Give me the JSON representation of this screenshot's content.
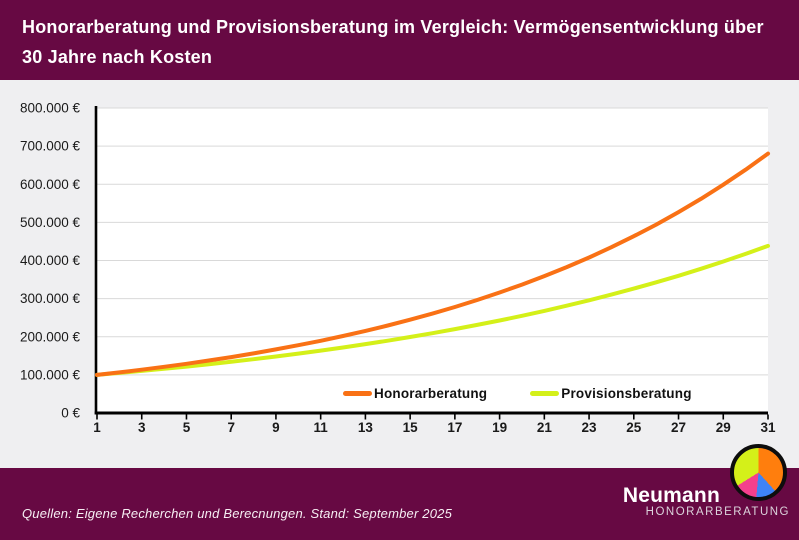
{
  "header": {
    "title": "Honorarberatung und Provisionsberatung im Vergleich: Vermögensentwicklung über 30 Jahre nach Kosten"
  },
  "footer": {
    "source_note": "Quellen: Eigene Recherchen und Berecnungen. Stand: September 2025",
    "brand": {
      "name": "Neumann",
      "subtitle": "HONORARBERATUNG"
    }
  },
  "colors": {
    "header_bg": "#670943",
    "footer_bg": "#670943",
    "canvas_bg": "#EFEFF1",
    "plot_bg": "#FFFFFF",
    "grid": "#D9D9D9",
    "axis": "#000000",
    "tick_label": "#1a1a1a",
    "logo_pie": {
      "orange": "#FF7E0D",
      "blue": "#3E83F7",
      "pink": "#F4408D",
      "green": "#D4F019"
    }
  },
  "chart_data": {
    "type": "line",
    "title": "",
    "xlabel": "",
    "ylabel": "",
    "xlim": [
      1,
      31
    ],
    "ylim": [
      0,
      800000
    ],
    "grid": true,
    "legend_position": "inside-bottom",
    "x": [
      1,
      2,
      3,
      4,
      5,
      6,
      7,
      8,
      9,
      10,
      11,
      12,
      13,
      14,
      15,
      16,
      17,
      18,
      19,
      20,
      21,
      22,
      23,
      24,
      25,
      26,
      27,
      28,
      29,
      30,
      31
    ],
    "x_tick_labels": [
      "1",
      "3",
      "5",
      "7",
      "9",
      "11",
      "13",
      "15",
      "17",
      "19",
      "21",
      "23",
      "25",
      "27",
      "29",
      "31"
    ],
    "y_ticks": [
      {
        "value": 0,
        "label": "0 €"
      },
      {
        "value": 100000,
        "label": "100.000 €"
      },
      {
        "value": 200000,
        "label": "200.000 €"
      },
      {
        "value": 300000,
        "label": "300.000 €"
      },
      {
        "value": 400000,
        "label": "400.000 €"
      },
      {
        "value": 500000,
        "label": "500.000 €"
      },
      {
        "value": 600000,
        "label": "600.000 €"
      },
      {
        "value": 700000,
        "label": "700.000 €"
      },
      {
        "value": 800000,
        "label": "800.000 €"
      }
    ],
    "series": [
      {
        "name": "Honorarberatung",
        "color": "#F97115",
        "values": [
          100000,
          106600,
          113636,
          121136,
          129131,
          137653,
          146738,
          156423,
          166747,
          177752,
          189484,
          201990,
          215321,
          229532,
          244681,
          260830,
          278045,
          296396,
          315958,
          336811,
          359041,
          382738,
          407998,
          434926,
          463631,
          494231,
          526850,
          561623,
          598690,
          638203,
          680325
        ]
      },
      {
        "name": "Provisionsberatung",
        "color": "#D4F019",
        "values": [
          100000,
          105050,
          110355,
          115928,
          121782,
          127932,
          134393,
          141180,
          148309,
          155799,
          163667,
          171932,
          180615,
          189736,
          199317,
          209383,
          219956,
          231064,
          242733,
          254991,
          267868,
          281395,
          295606,
          310534,
          326216,
          342690,
          359996,
          378175,
          397273,
          417336,
          438411
        ]
      }
    ]
  }
}
